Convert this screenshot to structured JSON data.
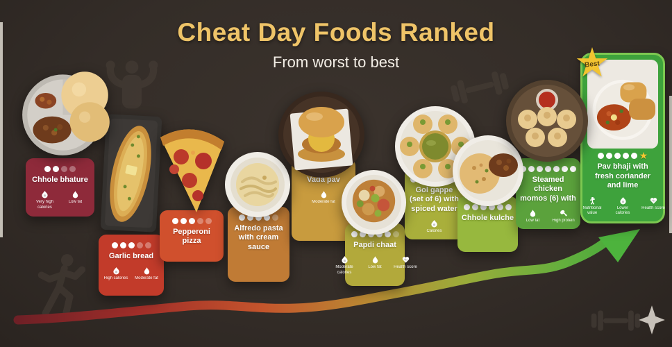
{
  "header": {
    "title": "Cheat Day Foods Ranked",
    "subtitle": "From worst to best",
    "title_color": "#EFC468",
    "subtitle_color": "#F3EEE6"
  },
  "best_badge_label": "Best",
  "colors": {
    "background": "#342D28",
    "dot_filled": "#FFFFFF",
    "star_gold": "#F2C330",
    "arrow_gradient": [
      "#6E2026",
      "#A12E29",
      "#C4542C",
      "#B98A33",
      "#9AAC3A",
      "#63AF3D",
      "#46A93C"
    ]
  },
  "decorative_icons": [
    "biceps-flex-icon",
    "dumbbell-icon",
    "runner-icon",
    "dumbbell-icon",
    "sparkle-icon"
  ],
  "cards": [
    {
      "name": "Chhole bhature",
      "photo": "chhole-bhature",
      "color": "#8E2A3A",
      "dots_filled": 2,
      "dots_faded": 2,
      "dots_total": 4,
      "has_star": false,
      "badges": [
        {
          "icon": "flame-icon",
          "label": "Very high calories"
        },
        {
          "icon": "droplet-icon",
          "label": "Low fat"
        }
      ]
    },
    {
      "name": "Garlic bread",
      "photo": "garlic-bread",
      "color": "#C23B2A",
      "dots_filled": 3,
      "dots_faded": 2,
      "dots_total": 5,
      "has_star": false,
      "badges": [
        {
          "icon": "flame-icon",
          "label": "High calories"
        },
        {
          "icon": "droplet-icon",
          "label": "Moderate fat"
        }
      ]
    },
    {
      "name": "Pepperoni pizza",
      "photo": "pepperoni-pizza",
      "color": "#D0502D",
      "dots_filled": 3,
      "dots_faded": 2,
      "dots_total": 5,
      "has_star": false,
      "badges": []
    },
    {
      "name": "Alfredo pasta with cream sauce",
      "photo": "alfredo-pasta",
      "color": "#C07B35",
      "dots_filled": 4,
      "dots_faded": 1,
      "dots_total": 5,
      "has_star": false,
      "badges": []
    },
    {
      "name": "Vada pav",
      "photo": "vada-pav",
      "color": "#C89B3E",
      "dots_filled": 4,
      "dots_faded": 1,
      "dots_total": 5,
      "has_star": false,
      "badges": [
        {
          "icon": "droplet-icon",
          "label": "Moderate fat"
        }
      ]
    },
    {
      "name": "Papdi chaat",
      "photo": "papdi-chaat",
      "color": "#B2A93B",
      "dots_filled": 5,
      "dots_faded": 1,
      "dots_total": 6,
      "has_star": false,
      "badges": [
        {
          "icon": "flame-icon",
          "label": "Moderate calories"
        },
        {
          "icon": "droplet-icon",
          "label": "Low fat"
        },
        {
          "icon": "heart-icon",
          "label": "Health score"
        }
      ]
    },
    {
      "name": "Gol gappe (set of 6) with spiced water",
      "photo": "gol-gappe",
      "color": "#A9AF3B",
      "dots_filled": 5,
      "dots_faded": 1,
      "dots_total": 6,
      "has_star": false,
      "badges": [
        {
          "icon": "flame-icon",
          "label": "Calories"
        }
      ]
    },
    {
      "name": "Chhole kulche",
      "photo": "chhole-kulche",
      "color": "#97B83E",
      "dots_filled": 6,
      "dots_faded": 0,
      "dots_total": 6,
      "has_star": false,
      "badges": []
    },
    {
      "name": "Steamed chicken momos (6) with",
      "photo": "momos",
      "color": "#5BA23C",
      "dots_filled": 7,
      "dots_faded": 0,
      "dots_total": 7,
      "has_star": false,
      "badges": [
        {
          "icon": "droplet-icon",
          "label": "Low fat"
        },
        {
          "icon": "protein-icon",
          "label": "High protein"
        }
      ]
    },
    {
      "name": "Pav bhaji with fresh coriander and lime",
      "photo": "pav-bhaji",
      "color": "#3EA23C",
      "dots_filled": 5,
      "dots_faded": 0,
      "dots_total": 5,
      "has_star": true,
      "badges": [
        {
          "icon": "person-icon",
          "label": "Nutritional value"
        },
        {
          "icon": "flame-icon",
          "label": "Lower calories"
        },
        {
          "icon": "heart-icon",
          "label": "Health score"
        }
      ]
    }
  ]
}
